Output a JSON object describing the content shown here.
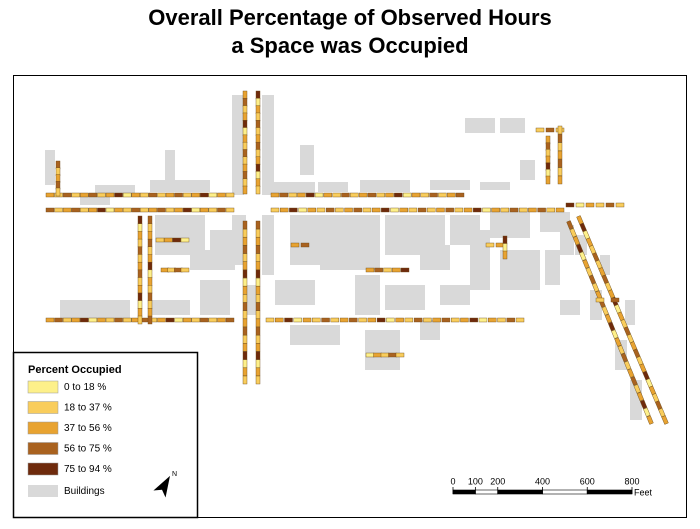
{
  "title_lines": [
    "Overall Percentage of Observed Hours",
    "a Space was Occupied"
  ],
  "legend": {
    "title": "Percent Occupied",
    "items": [
      {
        "label": "0 to 18 %",
        "color": "#fdf08a"
      },
      {
        "label": "18 to 37 %",
        "color": "#f9cd5c"
      },
      {
        "label": "37 to 56 %",
        "color": "#e8a331"
      },
      {
        "label": "56 to 75 %",
        "color": "#a9621f"
      },
      {
        "label": "75 to 94 %",
        "color": "#6e2a0c"
      }
    ],
    "buildings": {
      "label": "Buildings",
      "color": "#d9d9d9"
    }
  },
  "north_arrow": {
    "label": "N"
  },
  "scale_bar": {
    "ticks": [
      0,
      100,
      200,
      400,
      600,
      800
    ],
    "unit": "Feet"
  }
}
